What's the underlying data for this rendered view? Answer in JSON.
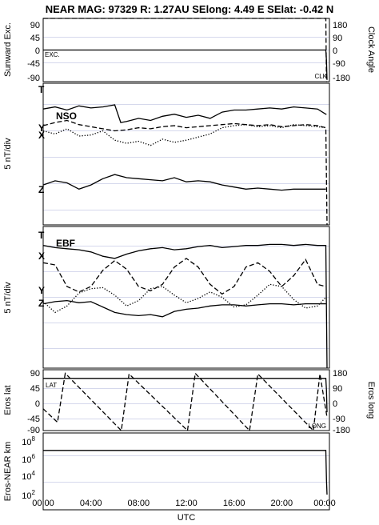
{
  "header": {
    "title": "NEAR MAG: 97329  R: 1.27AU  SElong:    4.49 E  SElat:   -0.42 N"
  },
  "xaxis": {
    "label": "UTC",
    "ticks": [
      "00:00",
      "04:00",
      "08:00",
      "12:00",
      "16:00",
      "20:00",
      "00:00"
    ],
    "tick_hours": [
      0,
      4,
      8,
      12,
      16,
      20,
      24
    ]
  },
  "panels": {
    "p1": {
      "left_label": "Sunward Exc.",
      "right_label": "Clock Angle",
      "left_ticks": [
        "90",
        "45",
        "0",
        "-45",
        "-90"
      ],
      "right_ticks": [
        "180",
        "90",
        "0",
        "-90",
        "-180"
      ],
      "tag_left": "EXC.",
      "tag_right": "CLK"
    },
    "p2": {
      "left_label": "5 nT/div",
      "name": "NSO",
      "trace_labels": [
        "T",
        "Y",
        "X",
        "Z"
      ]
    },
    "p3": {
      "left_label": "5 nT/div",
      "name": "EBF",
      "trace_labels": [
        "T",
        "X",
        "Y",
        "Z"
      ]
    },
    "p4": {
      "left_label": "Eros lat",
      "right_label": "Eros long",
      "left_ticks": [
        "90",
        "45",
        "0",
        "-45",
        "-90"
      ],
      "right_ticks": [
        "180",
        "90",
        "0",
        "-90",
        "-180"
      ],
      "tag_left": "LAT",
      "tag_right": "LONG"
    },
    "p5": {
      "left_label": "Eros-NEAR km",
      "left_ticks": [
        "10",
        "10",
        "10",
        "10"
      ],
      "left_tick_exponents": [
        "8",
        "6",
        "4",
        "2"
      ]
    }
  },
  "chart_data": [
    {
      "type": "line",
      "panel": "Sunward Exc. / Clock Angle",
      "ylabel": "Sunward Exc.",
      "ylabel_right": "Clock Angle",
      "ylim": [
        -90,
        90
      ],
      "ylim_right": [
        -180,
        180
      ],
      "series": [
        {
          "name": "EXC.",
          "style": "solid",
          "x": [
            0,
            23.7,
            23.75,
            23.8
          ],
          "y": [
            0,
            0,
            -30,
            -85
          ]
        },
        {
          "name": "CLK",
          "style": "dashed",
          "x": [
            0,
            23.7,
            23.75,
            23.8
          ],
          "y": [
            110,
            110,
            -100,
            -120
          ]
        }
      ]
    },
    {
      "type": "line",
      "panel": "NSO",
      "ylabel": "5 nT/div",
      "series": [
        {
          "name": "T",
          "style": "solid",
          "x": [
            0,
            1,
            2,
            3,
            4,
            5,
            6,
            6.5,
            7,
            8,
            9,
            10,
            11,
            12,
            13,
            14,
            15,
            16,
            17,
            18,
            19,
            20,
            21,
            22,
            23,
            23.7,
            23.75
          ],
          "y": [
            2.1,
            2.3,
            2.0,
            2.4,
            2.2,
            2.3,
            2.5,
            0.8,
            0.9,
            1.2,
            1.0,
            1.4,
            1.6,
            1.3,
            1.5,
            1.2,
            1.8,
            2.0,
            2.0,
            2.1,
            2.2,
            2.1,
            2.3,
            2.2,
            2.1,
            1.6,
            1.6
          ]
        },
        {
          "name": "Y",
          "style": "dashed",
          "x": [
            0,
            1,
            2,
            3,
            4,
            5,
            6,
            7,
            8,
            9,
            10,
            11,
            12,
            13,
            14,
            15,
            16,
            17,
            18,
            19,
            20,
            21,
            22,
            23,
            23.7,
            23.8
          ],
          "y": [
            0.5,
            0.8,
            1.0,
            0.6,
            0.4,
            0.2,
            0.0,
            0.1,
            0.3,
            0.2,
            0.4,
            0.5,
            0.3,
            0.4,
            0.5,
            0.6,
            0.7,
            0.6,
            0.5,
            0.6,
            0.4,
            0.5,
            0.6,
            0.5,
            0.3,
            -14
          ]
        },
        {
          "name": "X",
          "style": "dotted",
          "x": [
            0,
            1,
            2,
            3,
            4,
            5,
            6,
            7,
            8,
            9,
            10,
            11,
            12,
            13,
            14,
            15,
            16,
            17,
            18,
            19,
            20,
            21,
            22,
            23,
            23.7
          ],
          "y": [
            0.0,
            -0.3,
            0.2,
            -0.5,
            -0.4,
            0.0,
            -0.9,
            -1.2,
            -1.0,
            -1.4,
            -0.8,
            -1.1,
            -0.9,
            -0.6,
            -0.3,
            0.3,
            0.5,
            0.6,
            0.4,
            0.5,
            0.3,
            0.6,
            0.5,
            0.4,
            0.3
          ]
        },
        {
          "name": "Z",
          "style": "solid",
          "x": [
            0,
            1,
            2,
            3,
            4,
            5,
            6,
            7,
            8,
            9,
            10,
            11,
            12,
            13,
            14,
            15,
            16,
            17,
            18,
            19,
            20,
            21,
            22,
            23,
            23.7
          ],
          "y": [
            -5.2,
            -4.8,
            -5.0,
            -5.6,
            -5.2,
            -4.6,
            -4.2,
            -4.5,
            -4.6,
            -4.7,
            -4.8,
            -4.5,
            -4.9,
            -4.8,
            -4.9,
            -5.2,
            -5.4,
            -5.6,
            -5.5,
            -5.6,
            -5.7,
            -5.6,
            -5.6,
            -5.6,
            -5.6
          ]
        }
      ]
    },
    {
      "type": "line",
      "panel": "EBF",
      "ylabel": "5 nT/div",
      "series": [
        {
          "name": "T",
          "style": "solid",
          "x": [
            0,
            1,
            2,
            3,
            4,
            5,
            6,
            7,
            8,
            9,
            10,
            11,
            12,
            13,
            14,
            15,
            16,
            17,
            18,
            19,
            20,
            21,
            22,
            23,
            23.7,
            23.8
          ],
          "y": [
            4.8,
            4.6,
            4.5,
            4.4,
            4.2,
            3.8,
            3.6,
            4.0,
            4.3,
            4.5,
            4.6,
            4.4,
            4.5,
            4.7,
            4.8,
            4.6,
            4.7,
            4.8,
            4.8,
            4.9,
            4.9,
            4.8,
            4.9,
            4.8,
            4.8,
            -11
          ]
        },
        {
          "name": "X",
          "style": "dashed",
          "x": [
            0,
            1,
            2,
            3,
            4,
            5,
            6,
            7,
            8,
            9,
            10,
            11,
            12,
            13,
            14,
            15,
            16,
            17,
            18,
            19,
            20,
            21,
            22,
            23,
            23.7
          ],
          "y": [
            3.2,
            3.0,
            1.0,
            0.5,
            1.0,
            2.5,
            3.4,
            2.6,
            1.0,
            0.6,
            1.2,
            2.8,
            3.6,
            2.8,
            1.2,
            0.3,
            1.0,
            2.8,
            3.2,
            2.4,
            1.0,
            2.0,
            3.5,
            1.2,
            1.0
          ]
        },
        {
          "name": "Y",
          "style": "dotted",
          "x": [
            0,
            1,
            2,
            3,
            4,
            5,
            6,
            7,
            8,
            9,
            10,
            11,
            12,
            13,
            14,
            15,
            16,
            17,
            18,
            19,
            20,
            21,
            22,
            23,
            23.7
          ],
          "y": [
            -0.4,
            -1.4,
            -0.8,
            0.4,
            0.8,
            0.9,
            0.2,
            -0.8,
            -0.3,
            0.8,
            1.0,
            0.2,
            -0.5,
            -0.1,
            0.5,
            0.0,
            -0.9,
            -0.7,
            0.2,
            1.2,
            1.0,
            -0.2,
            -1.0,
            -0.8,
            0.0
          ]
        },
        {
          "name": "Z",
          "style": "solid",
          "x": [
            0,
            1,
            2,
            3,
            4,
            5,
            6,
            7,
            8,
            9,
            10,
            11,
            12,
            13,
            14,
            15,
            16,
            17,
            18,
            19,
            20,
            21,
            22,
            23,
            23.7
          ],
          "y": [
            -0.6,
            -0.4,
            -0.3,
            -0.5,
            -0.4,
            -0.9,
            -1.4,
            -1.6,
            -1.7,
            -1.6,
            -1.8,
            -1.3,
            -1.1,
            -1.0,
            -0.8,
            -0.7,
            -0.7,
            -0.8,
            -0.7,
            -0.6,
            -0.6,
            -0.7,
            -0.6,
            -0.6,
            -0.6
          ]
        }
      ]
    },
    {
      "type": "line",
      "panel": "Eros lat / Eros long",
      "ylabel": "Eros lat",
      "ylabel_right": "Eros long",
      "ylim": [
        -90,
        90
      ],
      "ylim_right": [
        -180,
        180
      ],
      "series": [
        {
          "name": "LAT",
          "style": "solid",
          "x": [
            0,
            23.7,
            23.75,
            23.8
          ],
          "y": [
            75,
            75,
            40,
            -25
          ]
        },
        {
          "name": "LONG",
          "style": "dashed",
          "x": [
            0,
            1.2,
            1.85,
            6.55,
            7.2,
            12.1,
            12.75,
            17.3,
            18.0,
            22.65,
            23.2,
            23.8
          ],
          "y": [
            -15,
            -55,
            90,
            -90,
            88,
            -88,
            90,
            -90,
            88,
            -90,
            88,
            -40
          ]
        }
      ]
    },
    {
      "type": "line",
      "panel": "Eros-NEAR km",
      "ylabel": "Eros-NEAR km",
      "yscale": "log",
      "ylim": [
        10,
        100000000
      ],
      "series": [
        {
          "name": "",
          "style": "solid",
          "x": [
            0,
            23.7,
            23.75,
            23.8
          ],
          "y": [
            100000000,
            100000000,
            10000,
            100
          ]
        }
      ]
    }
  ]
}
